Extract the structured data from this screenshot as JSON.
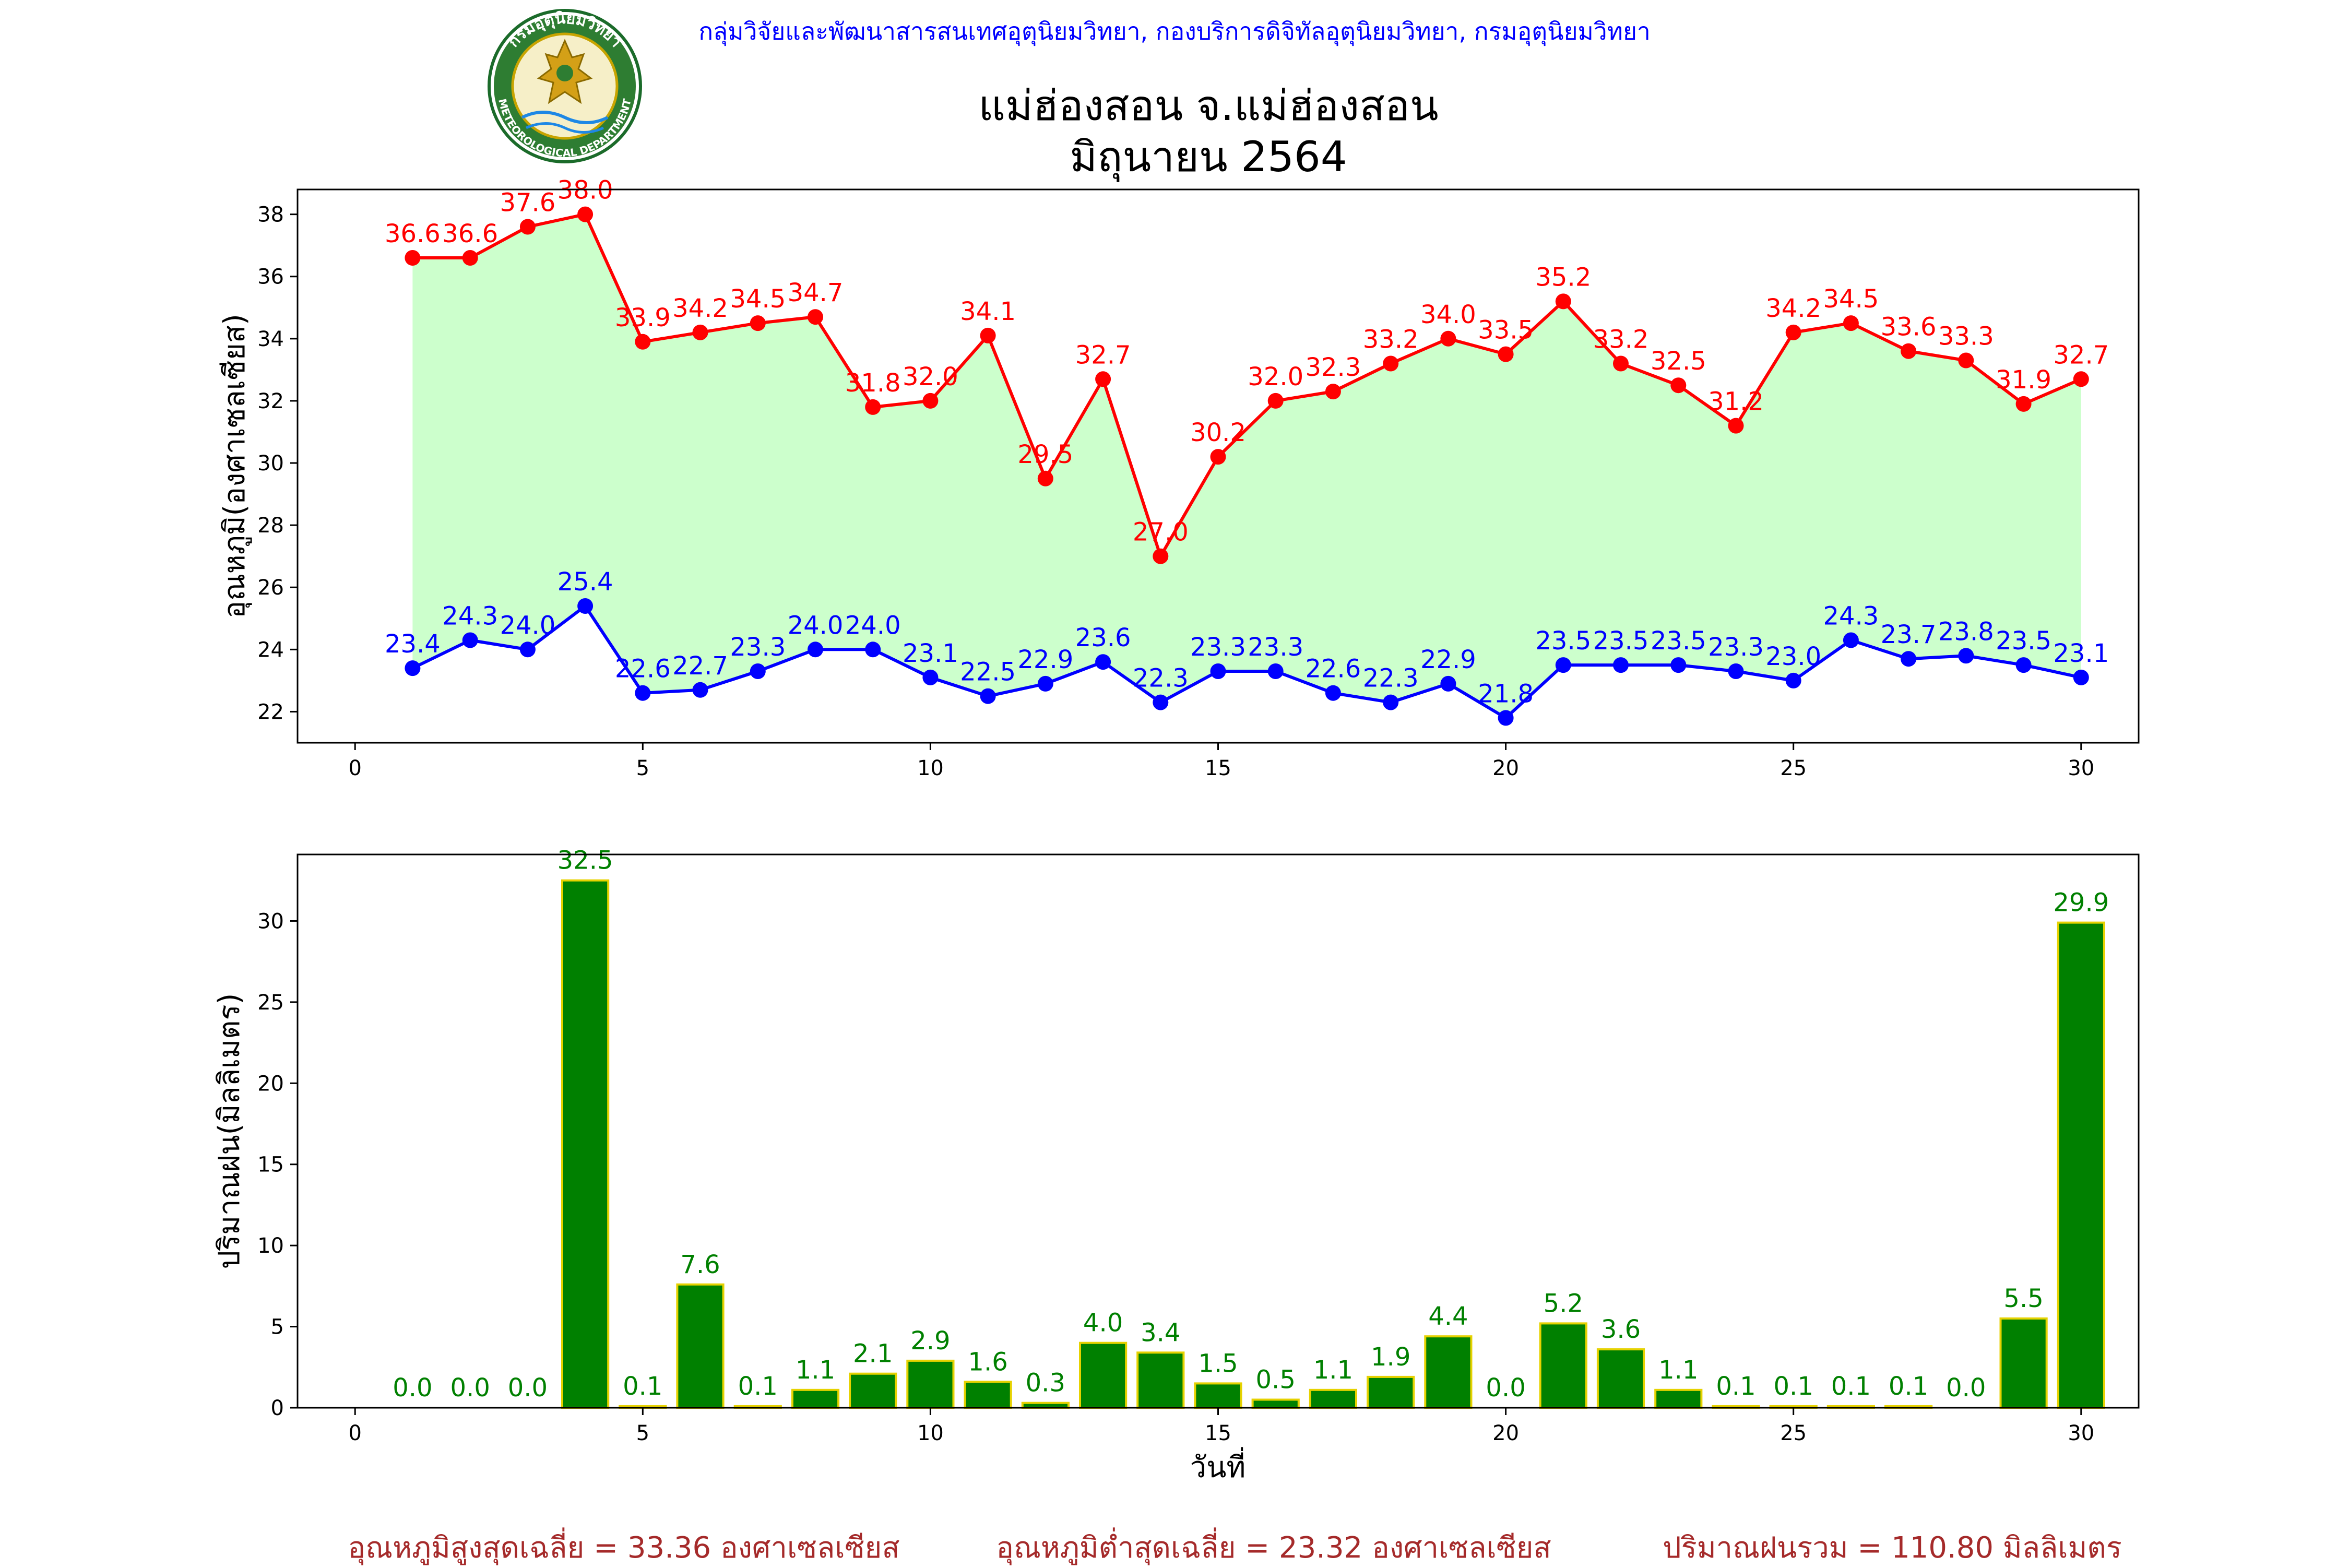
{
  "header": {
    "org": "กลุ่มวิจัยและพัฒนาสารสนเทศอุตุนิยมวิทยา, กองบริการดิจิทัลอุตุนิยมวิทยา, กรมอุตุนิยมวิทยา",
    "title_line1": "แม่ฮ่องสอน จ.แม่ฮ่องสอน",
    "title_line2": "มิถุนายน 2564",
    "logo_top_text": "กรมอุตุนิยมวิทยา",
    "logo_bottom_text": "METEOROLOGICAL DEPARTMENT"
  },
  "colors": {
    "max": "#ff0000",
    "min": "#0000ff",
    "fill": "#ccffcc",
    "bar": "#008000",
    "bar_edge": "#e6d200",
    "rain_label": "#008000",
    "footer": "#a52a2a",
    "org": "#0000ff"
  },
  "chart_data": [
    {
      "type": "line",
      "ylabel": "อุณหภูมิ(องศาเซลเซียส)",
      "xlim": [
        -1,
        31
      ],
      "ylim": [
        21,
        38.8
      ],
      "xticks": [
        0,
        5,
        10,
        15,
        20,
        25,
        30
      ],
      "yticks": [
        22,
        24,
        26,
        28,
        30,
        32,
        34,
        36,
        38
      ],
      "x": [
        1,
        2,
        3,
        4,
        5,
        6,
        7,
        8,
        9,
        10,
        11,
        12,
        13,
        14,
        15,
        16,
        17,
        18,
        19,
        20,
        21,
        22,
        23,
        24,
        25,
        26,
        27,
        28,
        29,
        30
      ],
      "series": [
        {
          "key": "max",
          "values": [
            36.6,
            36.6,
            37.6,
            38.0,
            33.9,
            34.2,
            34.5,
            34.7,
            31.8,
            32.0,
            34.1,
            29.5,
            32.7,
            27.0,
            30.2,
            32.0,
            32.3,
            33.2,
            34.0,
            33.5,
            35.2,
            33.2,
            32.5,
            31.2,
            34.2,
            34.5,
            33.6,
            33.3,
            31.9,
            32.7
          ]
        },
        {
          "key": "min",
          "values": [
            23.4,
            24.3,
            24.0,
            25.4,
            22.6,
            22.7,
            23.3,
            24.0,
            24.0,
            23.1,
            22.5,
            22.9,
            23.6,
            22.3,
            23.3,
            23.3,
            22.6,
            22.3,
            22.9,
            21.8,
            23.5,
            23.5,
            23.5,
            23.3,
            23.0,
            24.3,
            23.7,
            23.8,
            23.5,
            23.1
          ]
        }
      ],
      "fill_between": true
    },
    {
      "type": "bar",
      "xlabel": "วันที่",
      "ylabel": "ปริมาณฝน(มิลลิเมตร)",
      "xlim": [
        -1,
        31
      ],
      "ylim": [
        0,
        34.1
      ],
      "xticks": [
        0,
        5,
        10,
        15,
        20,
        25,
        30
      ],
      "yticks": [
        0,
        5,
        10,
        15,
        20,
        25,
        30
      ],
      "x": [
        1,
        2,
        3,
        4,
        5,
        6,
        7,
        8,
        9,
        10,
        11,
        12,
        13,
        14,
        15,
        16,
        17,
        18,
        19,
        20,
        21,
        22,
        23,
        24,
        25,
        26,
        27,
        28,
        29,
        30
      ],
      "values": [
        0.0,
        0.0,
        0.0,
        32.5,
        0.1,
        7.6,
        0.1,
        1.1,
        2.1,
        2.9,
        1.6,
        0.3,
        4.0,
        3.4,
        1.5,
        0.5,
        1.1,
        1.9,
        4.4,
        0.0,
        5.2,
        3.6,
        1.1,
        0.1,
        0.1,
        0.1,
        0.1,
        0.0,
        5.5,
        29.9
      ]
    }
  ],
  "footer": {
    "avg_max": "อุณหภูมิสูงสุดเฉลี่ย = 33.36 องศาเซลเซียส",
    "avg_min": "อุณหภูมิต่ำสุดเฉลี่ย = 23.32 องศาเซลเซียส",
    "total_rain": "ปริมาณฝนรวม = 110.80 มิลลิเมตร"
  }
}
